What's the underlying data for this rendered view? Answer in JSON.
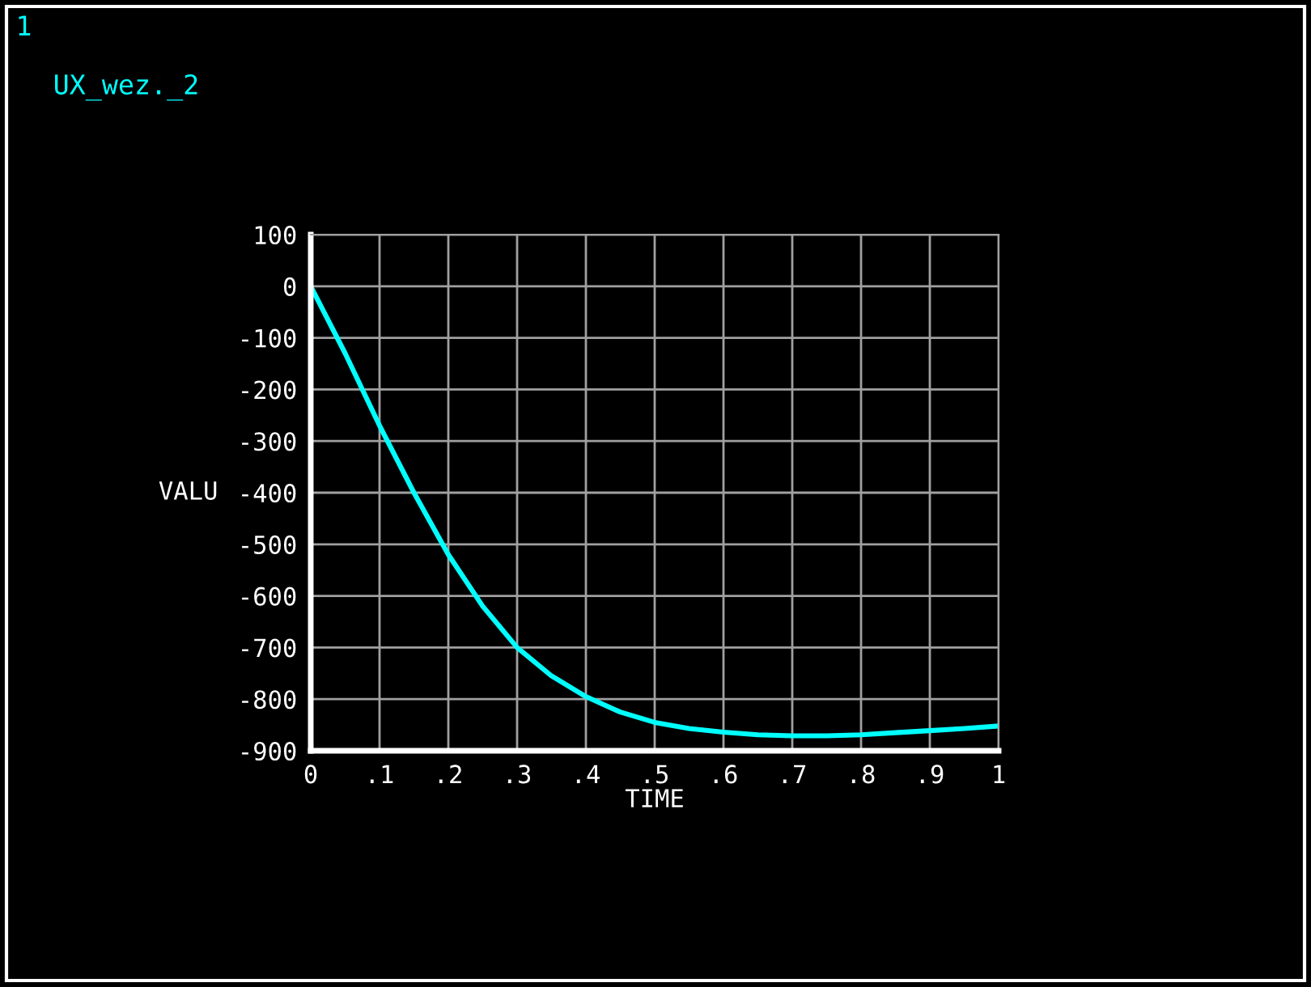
{
  "chart_data": {
    "type": "line",
    "xlabel": "TIME",
    "ylabel": "VALU",
    "annotations": [
      "1"
    ],
    "x": [
      0,
      0.05,
      0.1,
      0.15,
      0.2,
      0.25,
      0.3,
      0.35,
      0.4,
      0.45,
      0.5,
      0.55,
      0.6,
      0.65,
      0.7,
      0.75,
      0.8,
      0.85,
      0.9,
      0.95,
      1
    ],
    "series": [
      {
        "name": "UX_wez._2",
        "color": "#00ffff",
        "values": [
          0,
          -130,
          -270,
          -400,
          -520,
          -620,
          -700,
          -755,
          -795,
          -825,
          -845,
          -857,
          -864,
          -869,
          -871,
          -871,
          -869,
          -865,
          -861,
          -857,
          -852
        ]
      }
    ],
    "xlim": [
      0,
      1
    ],
    "ylim": [
      -900,
      100
    ],
    "xticks": [
      0,
      {
        "value": 0.1,
        "label": ".1"
      },
      {
        "value": 0.2,
        "label": ".2"
      },
      {
        "value": 0.3,
        "label": ".3"
      },
      {
        "value": 0.4,
        "label": ".4"
      },
      {
        "value": 0.5,
        "label": ".5"
      },
      {
        "value": 0.6,
        "label": ".6"
      },
      {
        "value": 0.7,
        "label": ".7"
      },
      {
        "value": 0.8,
        "label": ".8"
      },
      {
        "value": 0.9,
        "label": ".9"
      },
      1
    ],
    "yticks": [
      100,
      0,
      -100,
      -200,
      -300,
      -400,
      -500,
      -600,
      -700,
      -800,
      -900
    ],
    "grid": true,
    "legend": "top left",
    "marker": "none",
    "line_style": "solid"
  }
}
